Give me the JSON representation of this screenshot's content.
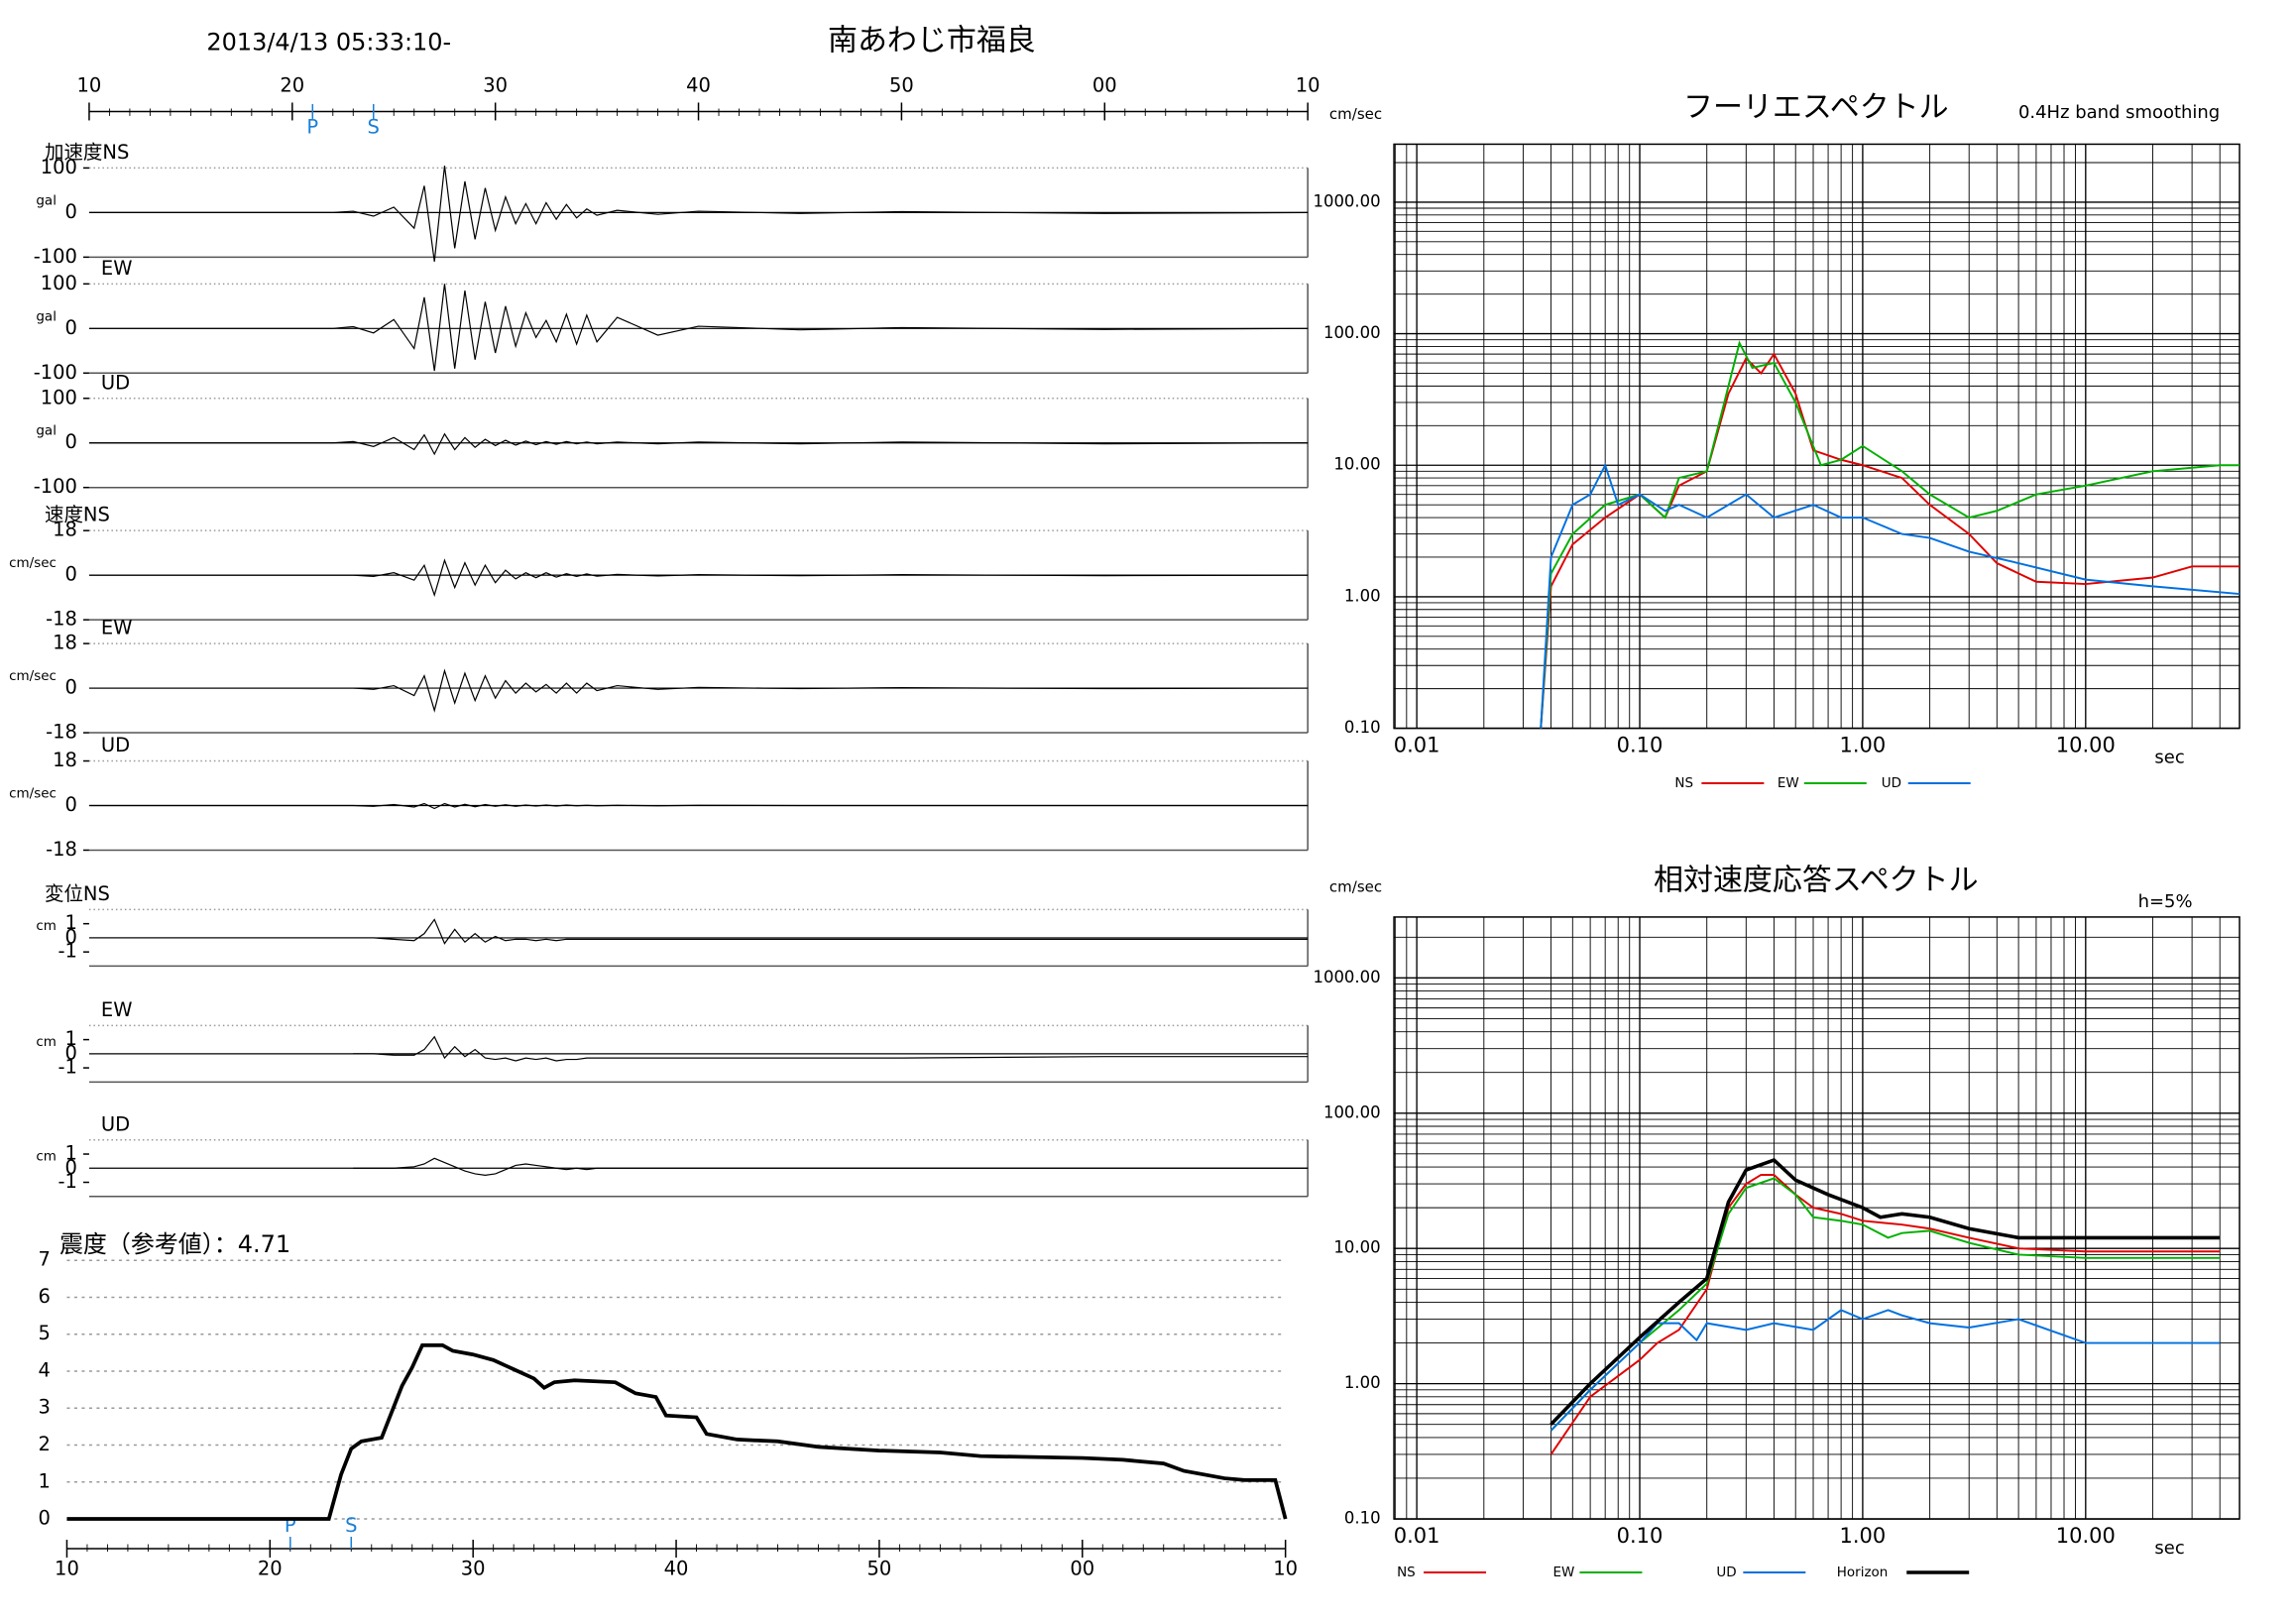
{
  "header": {
    "datetime": "2013/4/13 05:33:10-",
    "station": "南あわじ市福良"
  },
  "chart_data": [
    {
      "type": "waveform",
      "xlim": [
        0,
        60
      ],
      "xticks": [
        {
          "value": 0,
          "label": "10"
        },
        {
          "value": 10,
          "label": "20"
        },
        {
          "value": 20,
          "label": "30"
        },
        {
          "value": 30,
          "label": "40"
        },
        {
          "value": 40,
          "label": "50"
        },
        {
          "value": 50,
          "label": "00"
        },
        {
          "value": 60,
          "label": "10"
        }
      ],
      "markers": [
        {
          "label": "P",
          "x": 11
        },
        {
          "label": "S",
          "x": 14
        }
      ],
      "x": [
        0,
        12,
        13,
        14,
        15,
        16,
        16.5,
        17,
        17.5,
        18,
        18.5,
        19,
        19.5,
        20,
        20.5,
        21,
        21.5,
        22,
        22.5,
        23,
        23.5,
        24,
        24.5,
        25,
        26,
        28,
        30,
        35,
        40,
        50,
        60
      ],
      "panels": [
        {
          "name": "加速度NS",
          "unit": "gal",
          "ylim": [
            -100,
            100
          ],
          "yticks": [
            -100,
            0,
            100
          ],
          "values": [
            0,
            0,
            3,
            -8,
            12,
            -35,
            60,
            -110,
            105,
            -80,
            70,
            -60,
            55,
            -40,
            35,
            -25,
            20,
            -25,
            22,
            -15,
            18,
            -12,
            8,
            -6,
            5,
            -4,
            3,
            -2,
            2,
            -2,
            0
          ]
        },
        {
          "name": "EW",
          "unit": "gal",
          "ylim": [
            -100,
            100
          ],
          "yticks": [
            -100,
            0,
            100
          ],
          "values": [
            0,
            0,
            4,
            -10,
            20,
            -45,
            70,
            -95,
            100,
            -90,
            85,
            -70,
            60,
            -55,
            50,
            -40,
            35,
            -20,
            18,
            -30,
            32,
            -35,
            30,
            -30,
            25,
            -15,
            5,
            -3,
            2,
            -2,
            0
          ]
        },
        {
          "name": "UD",
          "unit": "gal",
          "ylim": [
            -100,
            100
          ],
          "yticks": [
            -100,
            0,
            100
          ],
          "values": [
            0,
            0,
            3,
            -8,
            12,
            -15,
            18,
            -25,
            20,
            -15,
            12,
            -10,
            8,
            -6,
            6,
            -5,
            4,
            -4,
            3,
            -3,
            3,
            -2,
            2,
            -2,
            2,
            -2,
            2,
            -2,
            2,
            -2,
            0
          ]
        },
        {
          "name": "速度NS",
          "unit": "cm/sec",
          "ylim": [
            -18,
            18
          ],
          "yticks": [
            -18,
            0,
            18
          ],
          "values": [
            0,
            0,
            0,
            -0.5,
            1,
            -2,
            4,
            -8,
            6,
            -5,
            5,
            -4,
            4,
            -3,
            2,
            -1.5,
            1,
            -1,
            1,
            -0.8,
            0.6,
            -0.5,
            0.5,
            -0.4,
            0.3,
            -0.3,
            0.2,
            -0.2,
            0.2,
            -0.2,
            0
          ]
        },
        {
          "name": "EW",
          "unit": "cm/sec",
          "ylim": [
            -18,
            18
          ],
          "yticks": [
            -18,
            0,
            18
          ],
          "values": [
            0,
            0,
            0,
            -0.5,
            1,
            -3,
            5,
            -9,
            7,
            -6,
            6,
            -5,
            5,
            -4,
            3,
            -2,
            2,
            -1.5,
            1.5,
            -2,
            2,
            -2,
            2,
            -1,
            1,
            -0.5,
            0.3,
            -0.2,
            0.2,
            -0.2,
            0
          ]
        },
        {
          "name": "UD",
          "unit": "cm/sec",
          "ylim": [
            -18,
            18
          ],
          "yticks": [
            -18,
            0,
            18
          ],
          "values": [
            0,
            0,
            0,
            -0.3,
            0.4,
            -0.6,
            0.8,
            -1.2,
            0.8,
            -0.6,
            0.5,
            -0.5,
            0.4,
            -0.3,
            0.3,
            -0.3,
            0.2,
            -0.2,
            0.2,
            -0.2,
            0.2,
            -0.1,
            0.1,
            -0.1,
            0.1,
            -0.1,
            0.1,
            0,
            0,
            0,
            0
          ]
        },
        {
          "name": "変位NS",
          "unit": "cm",
          "ylim": [
            -2,
            2
          ],
          "yticks": [
            -1,
            0,
            1
          ],
          "values": [
            0,
            0,
            0,
            0,
            -0.1,
            -0.2,
            0.3,
            1.3,
            -0.4,
            0.6,
            -0.3,
            0.3,
            -0.3,
            0.1,
            -0.2,
            -0.1,
            -0.1,
            -0.2,
            -0.1,
            -0.2,
            -0.1,
            -0.1,
            -0.1,
            -0.1,
            -0.1,
            -0.1,
            -0.1,
            -0.1,
            -0.1,
            -0.1,
            -0.1
          ]
        },
        {
          "name": "EW",
          "unit": "cm",
          "ylim": [
            -2,
            2
          ],
          "yticks": [
            -1,
            0,
            1
          ],
          "values": [
            null,
            null,
            0,
            0,
            -0.1,
            -0.1,
            0.3,
            1.2,
            -0.3,
            0.5,
            -0.2,
            0.3,
            -0.3,
            -0.4,
            -0.3,
            -0.5,
            -0.3,
            -0.4,
            -0.3,
            -0.5,
            -0.4,
            -0.4,
            -0.3,
            -0.3,
            -0.3,
            -0.3,
            -0.3,
            -0.3,
            -0.3,
            -0.2,
            -0.2
          ]
        },
        {
          "name": "UD",
          "unit": "cm",
          "ylim": [
            -2,
            2
          ],
          "yticks": [
            -1,
            0,
            1
          ],
          "values": [
            null,
            null,
            0,
            0,
            0,
            0.1,
            0.3,
            0.7,
            0.4,
            0.1,
            -0.2,
            -0.4,
            -0.5,
            -0.4,
            -0.1,
            0.2,
            0.3,
            0.2,
            0.1,
            0,
            -0.1,
            0,
            -0.1,
            0,
            0,
            0,
            0,
            0,
            0,
            0,
            0
          ]
        }
      ]
    },
    {
      "type": "intensity",
      "title": "震度（参考値）：4.71",
      "xlim": [
        0,
        60
      ],
      "xticks": [
        {
          "value": 0,
          "label": "10"
        },
        {
          "value": 10,
          "label": "20"
        },
        {
          "value": 20,
          "label": "30"
        },
        {
          "value": 30,
          "label": "40"
        },
        {
          "value": 40,
          "label": "50"
        },
        {
          "value": 50,
          "label": "00"
        },
        {
          "value": 60,
          "label": "10"
        }
      ],
      "ylim": [
        0,
        7
      ],
      "yticks": [
        0,
        1,
        2,
        3,
        4,
        5,
        6,
        7
      ],
      "grid": true,
      "markers": [
        {
          "label": "P",
          "x": 11
        },
        {
          "label": "S",
          "x": 14
        }
      ],
      "x": [
        0,
        12.9,
        13.5,
        14,
        14.5,
        15.5,
        16,
        16.5,
        17,
        17.5,
        18.5,
        19,
        20,
        21,
        22,
        23,
        23.5,
        24,
        25,
        27,
        28,
        29,
        29.5,
        31,
        31.5,
        33,
        35,
        37,
        40,
        43,
        45,
        50,
        52,
        54,
        55,
        57,
        58,
        59.5,
        60
      ],
      "values": [
        0,
        0,
        1.2,
        1.9,
        2.1,
        2.2,
        2.9,
        3.6,
        4.1,
        4.7,
        4.7,
        4.55,
        4.45,
        4.3,
        4.05,
        3.8,
        3.55,
        3.7,
        3.75,
        3.7,
        3.4,
        3.3,
        2.8,
        2.75,
        2.3,
        2.15,
        2.1,
        1.95,
        1.85,
        1.8,
        1.7,
        1.65,
        1.6,
        1.5,
        1.3,
        1.1,
        1.05,
        1.05,
        0
      ],
      "color": "#000000"
    },
    {
      "type": "spectrum",
      "title": "フーリエスペクトル",
      "subtitle": "0.4Hz band smoothing",
      "y_label": "cm/sec",
      "x_label": "sec",
      "log": true,
      "xlim": [
        0.0079,
        49
      ],
      "ylim": [
        0.1,
        2760
      ],
      "xticks": [
        {
          "value": 0.01,
          "label": "0.01"
        },
        {
          "value": 0.1,
          "label": "0.10"
        },
        {
          "value": 1,
          "label": "1.00"
        },
        {
          "value": 10,
          "label": "10.00"
        }
      ],
      "yticks": [
        {
          "value": 0.1,
          "label": "0.10"
        },
        {
          "value": 1,
          "label": "1.00"
        },
        {
          "value": 10,
          "label": "10.00"
        },
        {
          "value": 100,
          "label": "100.00"
        },
        {
          "value": 1000,
          "label": "1000.00"
        }
      ],
      "series": [
        {
          "name": "NS",
          "color": "#e00000",
          "x": [
            0.036,
            0.04,
            0.05,
            0.07,
            0.1,
            0.13,
            0.15,
            0.2,
            0.25,
            0.3,
            0.35,
            0.4,
            0.5,
            0.6,
            0.8,
            1,
            1.5,
            2,
            3,
            4,
            6,
            10,
            20,
            30,
            49
          ],
          "values": [
            0.1,
            1.2,
            2.5,
            4,
            6,
            4,
            7,
            9,
            35,
            65,
            50,
            70,
            35,
            13,
            11,
            10,
            8,
            5,
            3,
            1.8,
            1.3,
            1.25,
            1.4,
            1.7,
            1.7
          ]
        },
        {
          "name": "EW",
          "color": "#00b000",
          "x": [
            0.036,
            0.04,
            0.05,
            0.07,
            0.1,
            0.13,
            0.15,
            0.2,
            0.25,
            0.28,
            0.32,
            0.4,
            0.5,
            0.65,
            0.8,
            1,
            1.5,
            2,
            3,
            4,
            6,
            10,
            20,
            40,
            49
          ],
          "values": [
            0.1,
            1.5,
            3,
            5,
            6,
            4,
            8,
            9,
            40,
            85,
            55,
            60,
            30,
            10,
            11,
            14,
            9,
            6,
            4,
            4.5,
            6,
            7,
            9,
            10,
            10
          ]
        },
        {
          "name": "UD",
          "color": "#0070e0",
          "x": [
            0.036,
            0.04,
            0.05,
            0.06,
            0.07,
            0.08,
            0.1,
            0.13,
            0.15,
            0.2,
            0.3,
            0.4,
            0.6,
            0.8,
            1,
            1.5,
            2,
            3,
            5,
            10,
            20,
            49
          ],
          "values": [
            0.1,
            2,
            5,
            6,
            10,
            5,
            6,
            4.5,
            5,
            4,
            6,
            4,
            5,
            4,
            4,
            3,
            2.8,
            2.2,
            1.8,
            1.35,
            1.2,
            1.05
          ]
        }
      ]
    },
    {
      "type": "spectrum",
      "title": "相対速度応答スペクトル",
      "subtitle": "h=5%",
      "y_label": "cm/sec",
      "x_label": "sec",
      "log": true,
      "xlim": [
        0.0079,
        49
      ],
      "ylim": [
        0.1,
        2820
      ],
      "xticks": [
        {
          "value": 0.01,
          "label": "0.01"
        },
        {
          "value": 0.1,
          "label": "0.10"
        },
        {
          "value": 1,
          "label": "1.00"
        },
        {
          "value": 10,
          "label": "10.00"
        }
      ],
      "yticks": [
        {
          "value": 0.1,
          "label": "0.10"
        },
        {
          "value": 1,
          "label": "1.00"
        },
        {
          "value": 10,
          "label": "10.00"
        },
        {
          "value": 100,
          "label": "100.00"
        },
        {
          "value": 1000,
          "label": "1000.00"
        }
      ],
      "series": [
        {
          "name": "NS",
          "color": "#e00000",
          "x": [
            0.04,
            0.06,
            0.1,
            0.12,
            0.15,
            0.2,
            0.25,
            0.3,
            0.35,
            0.4,
            0.5,
            0.6,
            0.8,
            1,
            1.5,
            2,
            3,
            5,
            10,
            40
          ],
          "values": [
            0.3,
            0.8,
            1.5,
            2,
            2.5,
            5,
            20,
            30,
            35,
            35,
            25,
            20,
            18,
            16,
            15,
            14,
            12,
            10,
            9.5,
            9.5
          ]
        },
        {
          "name": "EW",
          "color": "#00b000",
          "x": [
            0.04,
            0.06,
            0.1,
            0.15,
            0.2,
            0.25,
            0.3,
            0.4,
            0.5,
            0.6,
            0.8,
            1,
            1.3,
            1.5,
            2,
            3,
            5,
            10,
            40
          ],
          "values": [
            0.45,
            0.9,
            2,
            3.5,
            5.5,
            18,
            28,
            33,
            25,
            17,
            16,
            15,
            12,
            13,
            13.5,
            11,
            9,
            8.5,
            8.5
          ]
        },
        {
          "name": "UD",
          "color": "#0070e0",
          "x": [
            0.04,
            0.06,
            0.1,
            0.12,
            0.15,
            0.18,
            0.2,
            0.3,
            0.4,
            0.6,
            0.8,
            1,
            1.3,
            1.5,
            2,
            3,
            5,
            10,
            40
          ],
          "values": [
            0.45,
            0.9,
            2,
            2.8,
            2.8,
            2.1,
            2.8,
            2.5,
            2.8,
            2.5,
            3.5,
            3,
            3.5,
            3.2,
            2.8,
            2.6,
            3,
            2,
            2
          ]
        },
        {
          "name": "Horizon",
          "color": "#000000",
          "x": [
            0.04,
            0.06,
            0.1,
            0.15,
            0.2,
            0.25,
            0.3,
            0.4,
            0.5,
            0.7,
            1,
            1.2,
            1.5,
            2,
            3,
            5,
            10,
            40
          ],
          "values": [
            0.5,
            1,
            2.2,
            4,
            6,
            22,
            38,
            45,
            32,
            25,
            20,
            17,
            18,
            17,
            14,
            12,
            12,
            12
          ]
        }
      ]
    }
  ]
}
